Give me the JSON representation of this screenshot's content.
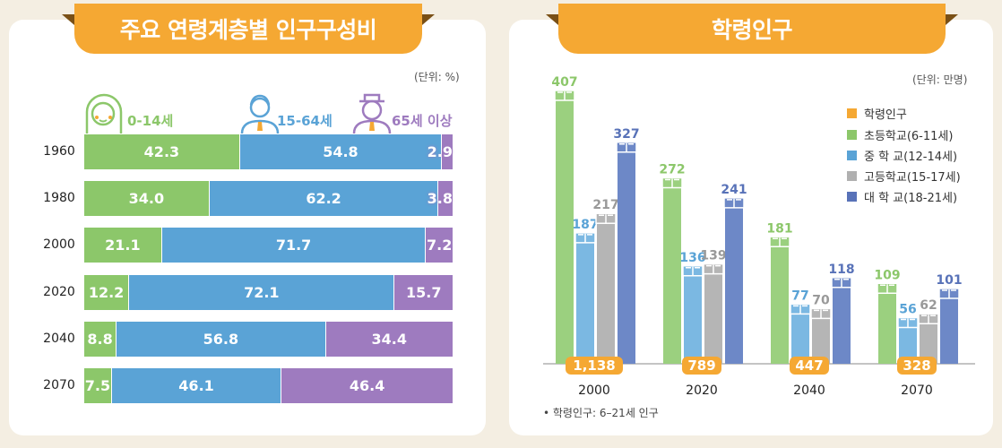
{
  "left": {
    "title": "주요 연령계층별 인구구성비",
    "unit": "(단위: %)"
  },
  "right": {
    "title": "학령인구",
    "unit": "(단위: 만명)",
    "note": "• 학령인구: 6–21세 인구"
  },
  "colors": {
    "tab": "#f5a833",
    "young": "#8cc76a",
    "working": "#5aa3d6",
    "old": "#9e7bbf",
    "elem": "#9bd07f",
    "middle": "#7bb8e2",
    "high": "#b5b5b5",
    "univ": "#6d88c7",
    "total": "#f5a833"
  },
  "chart_data": [
    {
      "type": "bar",
      "stacked": true,
      "orientation": "horizontal",
      "title": "주요 연령계층별 인구구성비",
      "unit": "(단위: %)",
      "categories": [
        "1960",
        "1980",
        "2000",
        "2020",
        "2040",
        "2070"
      ],
      "series": [
        {
          "name": "0-14세",
          "icon": "baby-icon",
          "values": [
            42.3,
            34.0,
            21.1,
            12.2,
            8.8,
            7.5
          ]
        },
        {
          "name": "15-64세",
          "icon": "adult-man-icon",
          "values": [
            54.8,
            62.2,
            71.7,
            72.1,
            56.8,
            46.1
          ]
        },
        {
          "name": "65세 이상",
          "icon": "elderly-man-icon",
          "values": [
            2.9,
            3.8,
            7.2,
            15.7,
            34.4,
            46.4
          ]
        }
      ],
      "xlim": [
        0,
        100
      ]
    },
    {
      "type": "bar",
      "title": "학령인구",
      "unit": "(단위: 만명)",
      "categories": [
        "2000",
        "2020",
        "2040",
        "2070"
      ],
      "totals": {
        "name": "학령인구",
        "values": [
          "1,138",
          "789",
          "447",
          "328"
        ]
      },
      "series": [
        {
          "name": "초등학교(6-11세)",
          "values": [
            407,
            272,
            181,
            109
          ]
        },
        {
          "name": "중 학 교(12-14세)",
          "values": [
            187,
            136,
            77,
            56
          ]
        },
        {
          "name": "고등학교(15-17세)",
          "values": [
            217,
            139,
            70,
            62
          ]
        },
        {
          "name": "대 학 교(18-21세)",
          "values": [
            327,
            241,
            118,
            101
          ]
        }
      ],
      "ylim": [
        0,
        407
      ],
      "legend": "top-right",
      "note": "• 학령인구: 6–21세 인구"
    }
  ]
}
